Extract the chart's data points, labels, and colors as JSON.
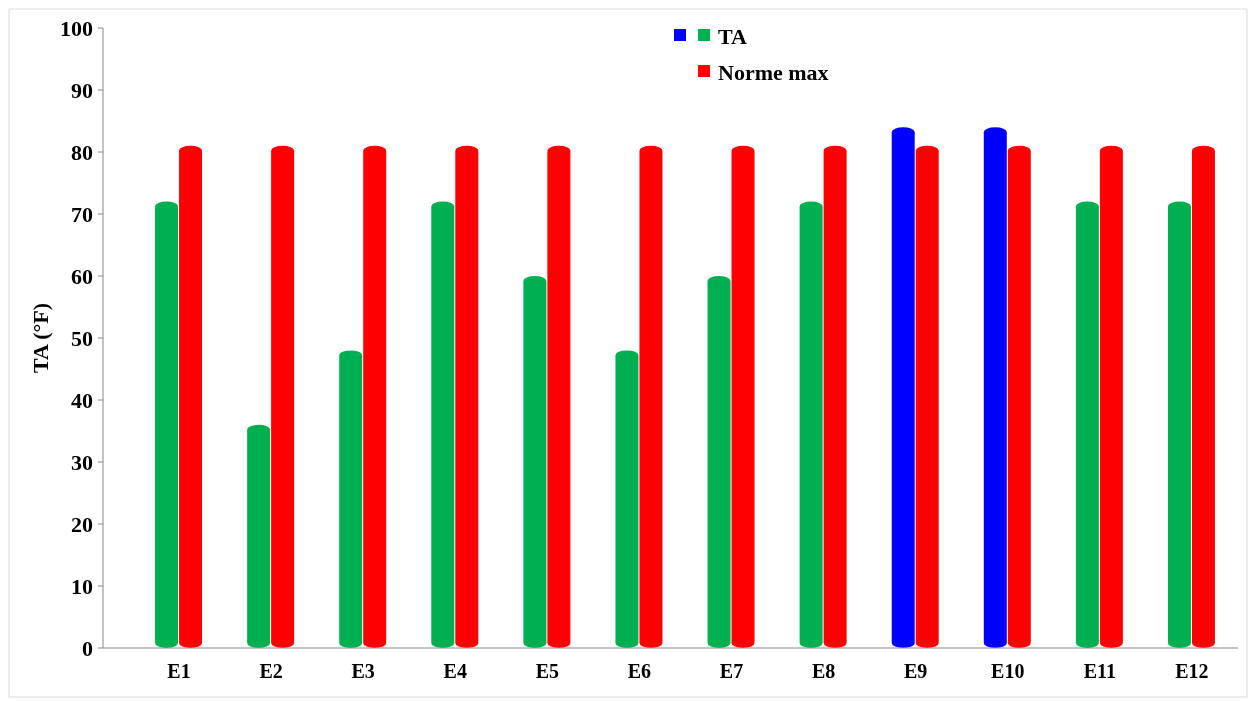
{
  "chart_data": {
    "type": "bar",
    "ylabel": "TA (°F)",
    "categories": [
      "E1",
      "E2",
      "E3",
      "E4",
      "E5",
      "E6",
      "E7",
      "E8",
      "E9",
      "E10",
      "E11",
      "E12"
    ],
    "series": [
      {
        "name": "TA",
        "colors": [
          "#00b050",
          "#00b050",
          "#00b050",
          "#00b050",
          "#00b050",
          "#00b050",
          "#00b050",
          "#00b050",
          "#0000ff",
          "#0000ff",
          "#00b050",
          "#00b050"
        ],
        "values": [
          72,
          36,
          48,
          72,
          60,
          48,
          60,
          72,
          84,
          84,
          72,
          72
        ]
      },
      {
        "name": "Norme max",
        "color": "#ff0000",
        "values": [
          81,
          81,
          81,
          81,
          81,
          81,
          81,
          81,
          81,
          81,
          81,
          81
        ]
      }
    ],
    "ylim": [
      0,
      100
    ],
    "yticks": [
      0,
      10,
      20,
      30,
      40,
      50,
      60,
      70,
      80,
      90,
      100
    ],
    "grid": false,
    "legend": "top"
  }
}
